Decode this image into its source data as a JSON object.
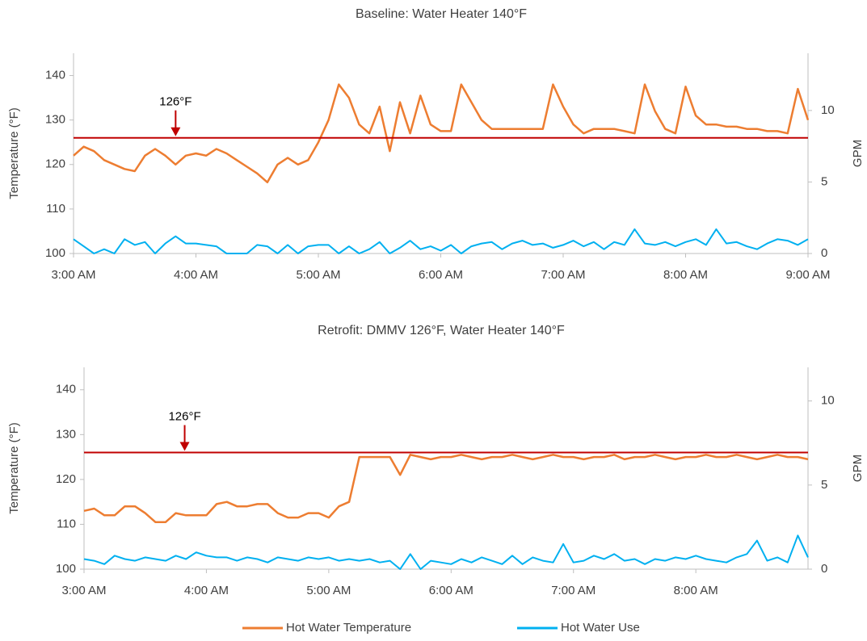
{
  "chart_data": [
    {
      "type": "line",
      "title": "Baseline: Water Heater 140°F",
      "y_label": "Temperature (°F)",
      "y2_label": "GPM",
      "categories": [
        "3:00 AM",
        null,
        null,
        null,
        null,
        null,
        null,
        null,
        null,
        null,
        null,
        null,
        "4:00 AM",
        null,
        null,
        null,
        null,
        null,
        null,
        null,
        null,
        null,
        null,
        null,
        "5:00 AM",
        null,
        null,
        null,
        null,
        null,
        null,
        null,
        null,
        null,
        null,
        null,
        "6:00 AM",
        null,
        null,
        null,
        null,
        null,
        null,
        null,
        null,
        null,
        null,
        null,
        "7:00 AM",
        null,
        null,
        null,
        null,
        null,
        null,
        null,
        null,
        null,
        null,
        null,
        "8:00 AM",
        null,
        null,
        null,
        null,
        null,
        null,
        null,
        null,
        null,
        null,
        null,
        "9:00 AM"
      ],
      "ylim": [
        100,
        145
      ],
      "yticks": [
        100,
        110,
        120,
        130,
        140
      ],
      "y2lim": [
        0,
        14
      ],
      "y2ticks": [
        0,
        5,
        10
      ],
      "reference_line": {
        "value": 126,
        "label": "126°F",
        "color": "#c00000"
      },
      "series": [
        {
          "color": "#ed7d31",
          "values": [
            122,
            124,
            123,
            121,
            120,
            119,
            118.5,
            122,
            123.5,
            122,
            120,
            122,
            122.5,
            122,
            123.5,
            122.5,
            121,
            119.5,
            118,
            116,
            120,
            121.5,
            120,
            121,
            125,
            130,
            138,
            135,
            129,
            127,
            133,
            123,
            134,
            127,
            135.5,
            129,
            127.5,
            127.5,
            138,
            134,
            130,
            128,
            128,
            128,
            128,
            128,
            128,
            138,
            133,
            129,
            127,
            128,
            128,
            128,
            127.5,
            127,
            138,
            132,
            128,
            127,
            137.5,
            131,
            129,
            129,
            128.5,
            128.5,
            128,
            128,
            127.5,
            127.5,
            127,
            137,
            130
          ]
        },
        {
          "color": "#00b0f0",
          "axis": "y2",
          "values": [
            1.0,
            0.5,
            0,
            0.3,
            0,
            1.0,
            0.6,
            0.8,
            0,
            0.7,
            1.2,
            0.7,
            0.7,
            0.6,
            0.5,
            0,
            0,
            0,
            0.6,
            0.5,
            0,
            0.6,
            0,
            0.5,
            0.6,
            0.6,
            0,
            0.5,
            0,
            0.3,
            0.8,
            0,
            0.4,
            0.9,
            0.3,
            0.5,
            0.2,
            0.6,
            0,
            0.5,
            0.7,
            0.8,
            0.3,
            0.7,
            0.9,
            0.6,
            0.7,
            0.4,
            0.6,
            0.9,
            0.5,
            0.8,
            0.3,
            0.8,
            0.6,
            1.7,
            0.7,
            0.6,
            0.8,
            0.5,
            0.8,
            1.0,
            0.6,
            1.7,
            0.7,
            0.8,
            0.5,
            0.3,
            0.7,
            1.0,
            0.9,
            0.6,
            1.0
          ]
        }
      ]
    },
    {
      "type": "line",
      "title": "Retrofit: DMMV 126°F, Water Heater 140°F",
      "y_label": "Temperature (°F)",
      "y2_label": "GPM",
      "categories": [
        "3:00 AM",
        null,
        null,
        null,
        null,
        null,
        null,
        null,
        null,
        null,
        null,
        null,
        "4:00 AM",
        null,
        null,
        null,
        null,
        null,
        null,
        null,
        null,
        null,
        null,
        null,
        "5:00 AM",
        null,
        null,
        null,
        null,
        null,
        null,
        null,
        null,
        null,
        null,
        null,
        "6:00 AM",
        null,
        null,
        null,
        null,
        null,
        null,
        null,
        null,
        null,
        null,
        null,
        "7:00 AM",
        null,
        null,
        null,
        null,
        null,
        null,
        null,
        null,
        null,
        null,
        null,
        "8:00 AM",
        null,
        null,
        null,
        null,
        null,
        null,
        null,
        null,
        null,
        null,
        null
      ],
      "ylim": [
        100,
        145
      ],
      "yticks": [
        100,
        110,
        120,
        130,
        140
      ],
      "y2lim": [
        0,
        12
      ],
      "y2ticks": [
        0,
        5,
        10
      ],
      "reference_line": {
        "value": 126,
        "label": "126°F",
        "color": "#c00000"
      },
      "series": [
        {
          "name": "Hot Water Temperature",
          "color": "#ed7d31",
          "values": [
            113,
            113.5,
            112,
            112,
            114,
            114,
            112.5,
            110.5,
            110.5,
            112.5,
            112,
            112,
            112,
            114.5,
            115,
            114,
            114,
            114.5,
            114.5,
            112.5,
            111.5,
            111.5,
            112.5,
            112.5,
            111.5,
            114,
            115,
            125,
            125,
            125,
            125,
            121,
            125.5,
            125,
            124.5,
            125,
            125,
            125.5,
            125,
            124.5,
            125,
            125,
            125.5,
            125,
            124.5,
            125,
            125.5,
            125,
            125,
            124.5,
            125,
            125,
            125.5,
            124.5,
            125,
            125,
            125.5,
            125,
            124.5,
            125,
            125,
            125.5,
            125,
            125,
            125.5,
            125,
            124.5,
            125,
            125.5,
            125,
            125,
            124.5
          ]
        },
        {
          "name": "Hot Water Use",
          "color": "#00b0f0",
          "axis": "y2",
          "values": [
            0.6,
            0.5,
            0.3,
            0.8,
            0.6,
            0.5,
            0.7,
            0.6,
            0.5,
            0.8,
            0.6,
            1.0,
            0.8,
            0.7,
            0.7,
            0.5,
            0.7,
            0.6,
            0.4,
            0.7,
            0.6,
            0.5,
            0.7,
            0.6,
            0.7,
            0.5,
            0.6,
            0.5,
            0.6,
            0.4,
            0.5,
            0,
            0.9,
            0,
            0.5,
            0.4,
            0.3,
            0.6,
            0.4,
            0.7,
            0.5,
            0.3,
            0.8,
            0.3,
            0.7,
            0.5,
            0.4,
            1.5,
            0.4,
            0.5,
            0.8,
            0.6,
            0.9,
            0.5,
            0.6,
            0.3,
            0.6,
            0.5,
            0.7,
            0.6,
            0.8,
            0.6,
            0.5,
            0.4,
            0.7,
            0.9,
            1.7,
            0.5,
            0.7,
            0.4,
            2.0,
            0.7
          ]
        }
      ]
    }
  ]
}
